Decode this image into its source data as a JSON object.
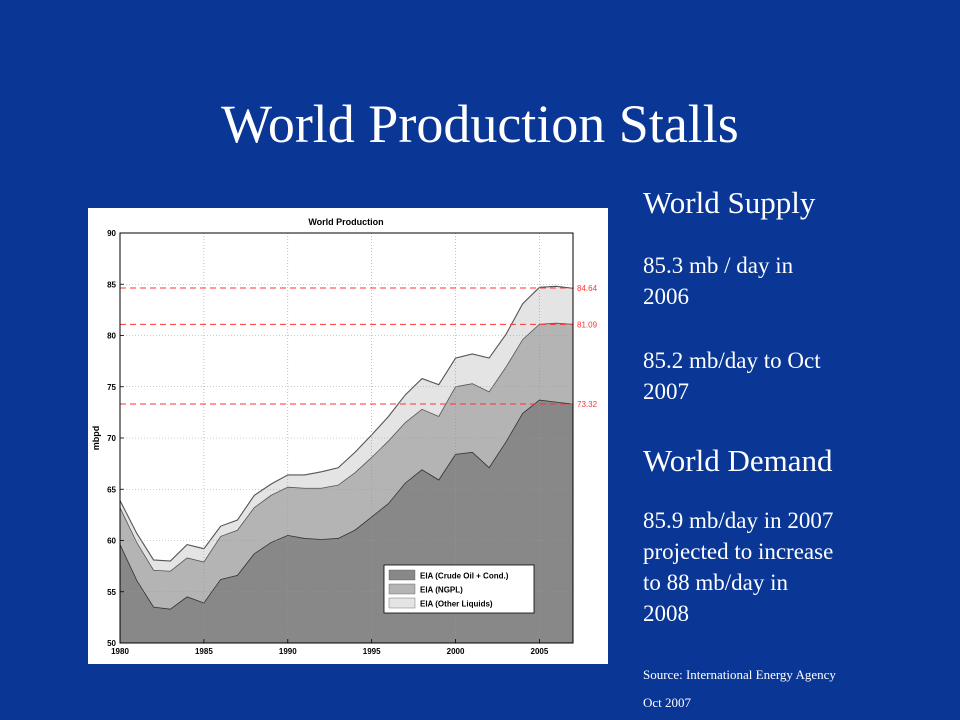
{
  "slide": {
    "title": "World Production Stalls"
  },
  "side_panel": {
    "supply_heading": "World Supply",
    "supply_2006_l1": "85.3 mb / day in",
    "supply_2006_l2": "2006",
    "supply_2007_l1": "85.2 mb/day to Oct",
    "supply_2007_l2": "2007",
    "demand_heading": "World Demand",
    "demand_l1": "85.9 mb/day in 2007",
    "demand_l2": "projected to increase",
    "demand_l3": "to 88 mb/day in",
    "demand_l4": "2008",
    "source_l1": "Source: International Energy Agency",
    "source_l2": "Oct 2007"
  },
  "chart_data": {
    "type": "area",
    "stacked": true,
    "title": "World Production",
    "xlabel": "",
    "ylabel": "mbpd",
    "xlim": [
      1980,
      2007
    ],
    "ylim": [
      50,
      90
    ],
    "xticks": [
      1980,
      1985,
      1990,
      1995,
      2000,
      2005
    ],
    "yticks": [
      50,
      55,
      60,
      65,
      70,
      75,
      80,
      85,
      90
    ],
    "grid": true,
    "legend_position": "bottom-right",
    "x": [
      1980,
      1981,
      1982,
      1983,
      1984,
      1985,
      1986,
      1987,
      1988,
      1989,
      1990,
      1991,
      1992,
      1993,
      1994,
      1995,
      1996,
      1997,
      1998,
      1999,
      2000,
      2001,
      2002,
      2003,
      2004,
      2005,
      2006,
      2007
    ],
    "series": [
      {
        "name": "EIA (Crude Oil + Cond.)",
        "color": "#888888",
        "cumulative_values": [
          59.6,
          56.1,
          53.5,
          53.3,
          54.5,
          53.9,
          56.2,
          56.6,
          58.7,
          59.8,
          60.5,
          60.2,
          60.1,
          60.2,
          61.0,
          62.3,
          63.6,
          65.6,
          66.9,
          65.9,
          68.4,
          68.6,
          67.1,
          69.6,
          72.4,
          73.7,
          73.5,
          73.3
        ]
      },
      {
        "name": "EIA (NGPL)",
        "color": "#b4b4b4",
        "cumulative_values": [
          63.2,
          59.8,
          57.1,
          57.0,
          58.3,
          57.9,
          60.4,
          61.0,
          63.2,
          64.4,
          65.2,
          65.1,
          65.1,
          65.4,
          66.6,
          68.1,
          69.7,
          71.5,
          72.8,
          72.1,
          75.0,
          75.3,
          74.5,
          76.9,
          79.6,
          81.1,
          81.2,
          81.1
        ]
      },
      {
        "name": "EIA (Other Liquids)",
        "color": "#e4e4e4",
        "cumulative_values": [
          63.9,
          60.7,
          58.1,
          58.0,
          59.6,
          59.2,
          61.4,
          62.0,
          64.4,
          65.5,
          66.4,
          66.4,
          66.7,
          67.1,
          68.6,
          70.3,
          72.1,
          74.2,
          75.8,
          75.2,
          77.8,
          78.2,
          77.8,
          80.1,
          83.1,
          84.7,
          84.8,
          84.6
        ]
      }
    ],
    "reference_lines": [
      {
        "y": 84.64,
        "label": "84.64",
        "color": "#ff3333"
      },
      {
        "y": 81.09,
        "label": "81.09",
        "color": "#ff3333"
      },
      {
        "y": 73.32,
        "label": "73.32",
        "color": "#ff3333"
      }
    ]
  }
}
